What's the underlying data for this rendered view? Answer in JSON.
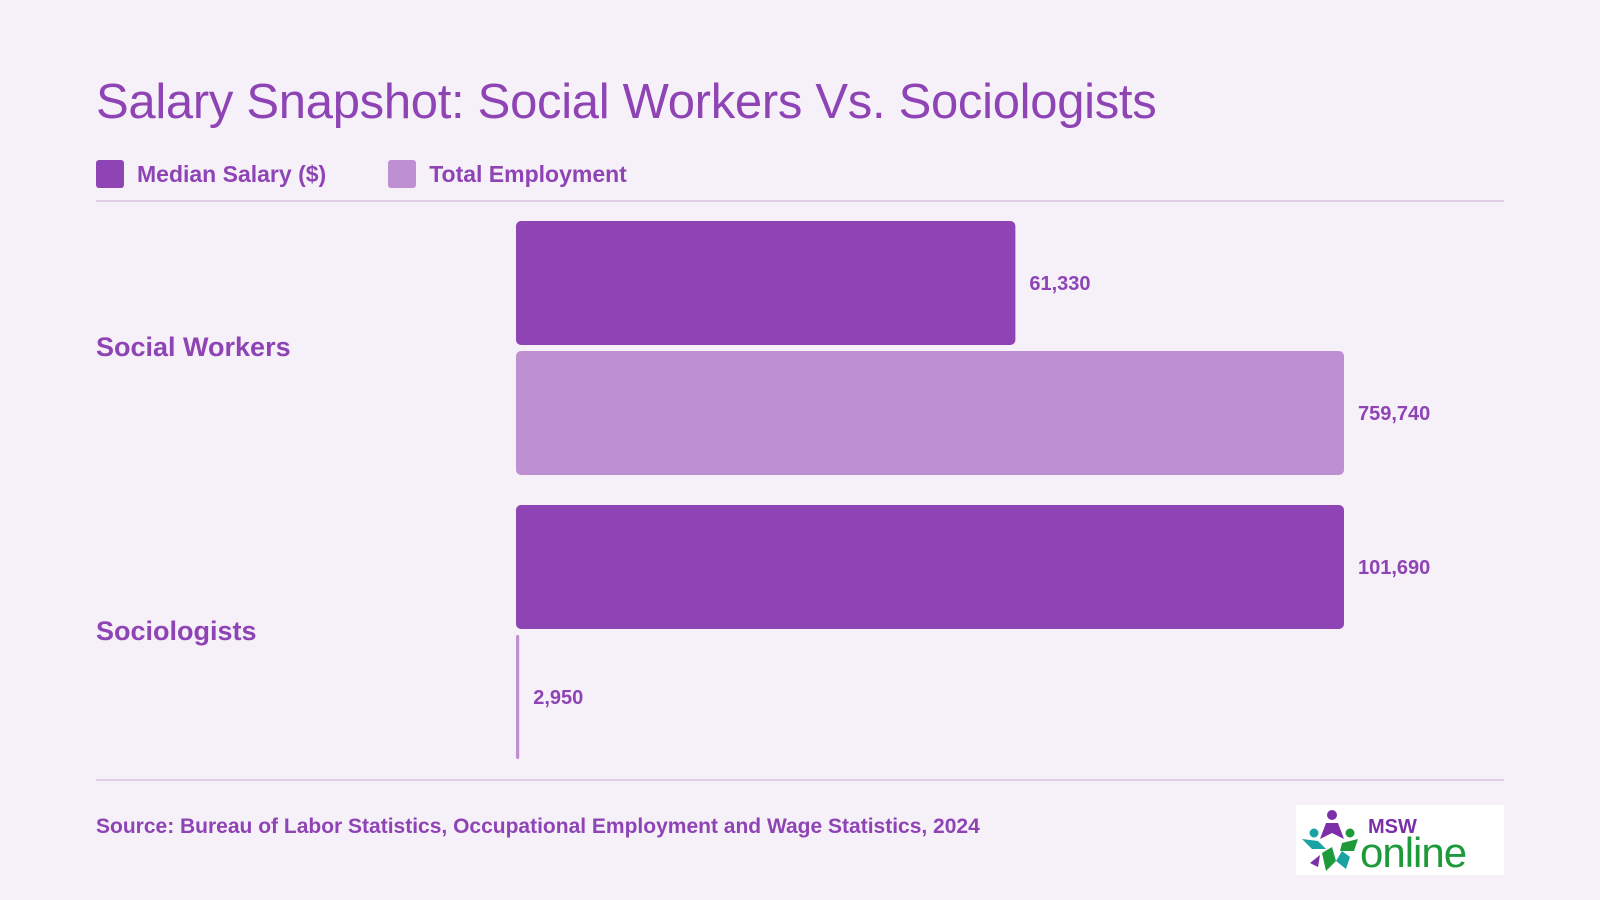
{
  "title": "Salary Snapshot: Social Workers Vs. Sociologists",
  "legend": [
    {
      "label": "Median Salary ($)",
      "color": "#8e44b4"
    },
    {
      "label": "Total Employment",
      "color": "#bf90d1"
    }
  ],
  "chart_data": {
    "type": "bar",
    "orientation": "horizontal",
    "categories": [
      "Social Workers",
      "Sociologists"
    ],
    "series": [
      {
        "name": "Median Salary ($)",
        "values": [
          61330,
          101690
        ],
        "labels": [
          "61,330",
          "101,690"
        ],
        "color": "#8e44b4"
      },
      {
        "name": "Total Employment",
        "values": [
          759740,
          2950
        ],
        "labels": [
          "759,740",
          "2,950"
        ],
        "color": "#bf90d1"
      }
    ],
    "scaling": "per-series",
    "legend_position": "top-left",
    "grid": false
  },
  "source": "Source: Bureau of Labor Statistics, Occupational Employment and Wage Statistics, 2024",
  "logo": {
    "top_text": "MSW",
    "bottom_text": "online",
    "colors": [
      "#7b2fa8",
      "#1f9a3a",
      "#1aa3a3"
    ]
  }
}
